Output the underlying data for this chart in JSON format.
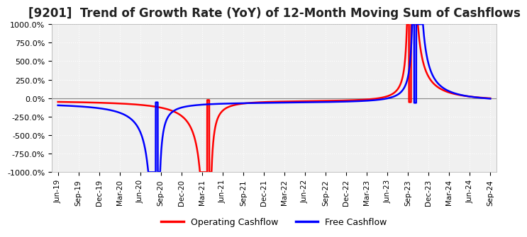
{
  "title": "[9201]  Trend of Growth Rate (YoY) of 12-Month Moving Sum of Cashflows",
  "ylim": [
    -1000,
    1000
  ],
  "yticks": [
    -1000,
    -750,
    -500,
    -250,
    0,
    250,
    500,
    750,
    1000
  ],
  "ytick_labels": [
    "-1000.0%",
    "-750.0%",
    "-500.0%",
    "-250.0%",
    "0.0%",
    "250.0%",
    "500.0%",
    "750.0%",
    "1000.0%"
  ],
  "legend_labels": [
    "Operating Cashflow",
    "Free Cashflow"
  ],
  "legend_colors": [
    "#ff0000",
    "#0000ff"
  ],
  "background_color": "#ffffff",
  "plot_bg_color": "#f0f0f0",
  "grid_color": "#ffffff",
  "title_fontsize": 12,
  "x_dates": [
    "Jun-19",
    "Sep-19",
    "Dec-19",
    "Mar-20",
    "Jun-20",
    "Sep-20",
    "Dec-20",
    "Mar-21",
    "Jun-21",
    "Sep-21",
    "Dec-21",
    "Mar-22",
    "Jun-22",
    "Sep-22",
    "Dec-22",
    "Mar-23",
    "Jun-23",
    "Sep-23",
    "Dec-23",
    "Mar-24",
    "Jun-24",
    "Sep-24"
  ]
}
